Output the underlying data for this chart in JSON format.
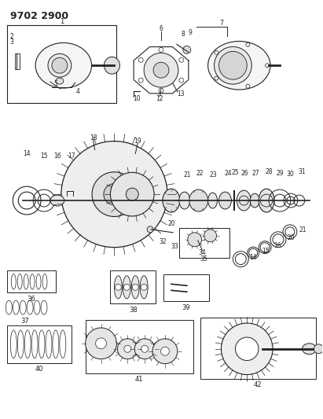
{
  "title": "9702 2900",
  "bg_color": "#ffffff",
  "lc": "#222222",
  "fig_width": 4.11,
  "fig_height": 5.33,
  "dpi": 100
}
